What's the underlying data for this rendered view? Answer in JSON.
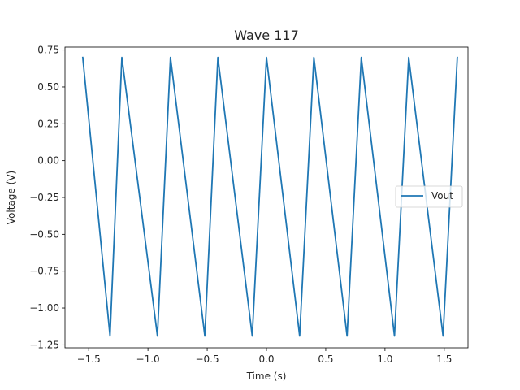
{
  "chart_data": {
    "type": "line",
    "title": "Wave 117",
    "xlabel": "Time (s)",
    "ylabel": "Voltage (V)",
    "xlim": [
      -1.7,
      1.7
    ],
    "ylim": [
      -1.27,
      0.77
    ],
    "xticks": [
      -1.5,
      -1.0,
      -0.5,
      0.0,
      0.5,
      1.0,
      1.5
    ],
    "xtick_labels": [
      "−1.5",
      "−1.0",
      "−0.5",
      "0.0",
      "0.5",
      "1.0",
      "1.5"
    ],
    "yticks": [
      0.75,
      0.5,
      0.25,
      0.0,
      -0.25,
      -0.5,
      -0.75,
      -1.0,
      -1.25
    ],
    "ytick_labels": [
      "0.75",
      "0.50",
      "0.25",
      "0.00",
      "−0.25",
      "−0.50",
      "−0.75",
      "−1.00",
      "−1.25"
    ],
    "grid": false,
    "legend_position": "center-right",
    "series": [
      {
        "name": "Vout",
        "color": "#1f77b4",
        "x": [
          -1.55,
          -1.32,
          -1.22,
          -0.92,
          -0.81,
          -0.52,
          -0.41,
          -0.12,
          0.0,
          0.28,
          0.4,
          0.68,
          0.8,
          1.08,
          1.2,
          1.49,
          1.61
        ],
        "y": [
          0.7,
          -1.19,
          0.7,
          -1.19,
          0.7,
          -1.19,
          0.7,
          -1.19,
          0.7,
          -1.19,
          0.7,
          -1.19,
          0.7,
          -1.19,
          0.7,
          -1.19,
          0.7
        ]
      }
    ]
  }
}
